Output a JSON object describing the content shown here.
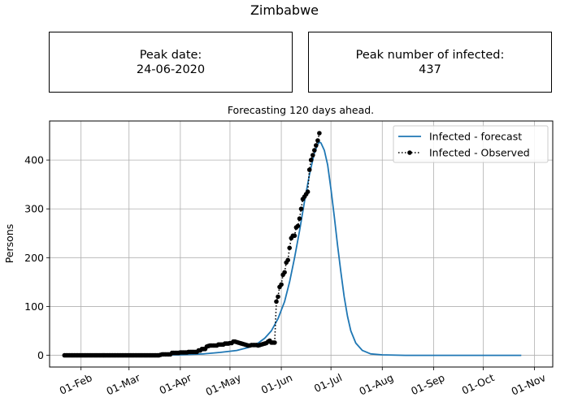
{
  "suptitle": "Zimbabwe",
  "boxes": {
    "peak_date_label": "Peak date:",
    "peak_date_value": "24-06-2020",
    "peak_num_label": "Peak number of infected:",
    "peak_num_value": "437"
  },
  "chart_data": {
    "type": "line",
    "title": "Forecasting 120 days ahead.",
    "xlabel": "",
    "ylabel": "Persons",
    "x_axis": "date",
    "xlim": [
      "2020-01-13",
      "2020-11-12"
    ],
    "ylim": [
      -24,
      480
    ],
    "grid": true,
    "legend_position": "upper right",
    "x_ticks": [
      "01-Feb",
      "01-Mar",
      "01-Apr",
      "01-May",
      "01-Jun",
      "01-Jul",
      "01-Aug",
      "01-Sep",
      "01-Oct",
      "01-Nov"
    ],
    "x_tick_dates": [
      "2020-02-01",
      "2020-03-01",
      "2020-04-01",
      "2020-05-01",
      "2020-06-01",
      "2020-07-01",
      "2020-08-01",
      "2020-09-01",
      "2020-10-01",
      "2020-11-01"
    ],
    "y_ticks": [
      0,
      100,
      200,
      300,
      400
    ],
    "series": [
      {
        "name": "Infected - forecast",
        "color": "#1f77b4",
        "style": "solid",
        "points": [
          [
            "2020-01-22",
            0
          ],
          [
            "2020-03-01",
            0
          ],
          [
            "2020-04-01",
            1
          ],
          [
            "2020-04-15",
            3
          ],
          [
            "2020-04-25",
            6
          ],
          [
            "2020-05-05",
            10
          ],
          [
            "2020-05-12",
            16
          ],
          [
            "2020-05-18",
            25
          ],
          [
            "2020-05-22",
            35
          ],
          [
            "2020-05-26",
            50
          ],
          [
            "2020-05-30",
            75
          ],
          [
            "2020-06-03",
            110
          ],
          [
            "2020-06-06",
            150
          ],
          [
            "2020-06-09",
            200
          ],
          [
            "2020-06-12",
            255
          ],
          [
            "2020-06-15",
            315
          ],
          [
            "2020-06-18",
            370
          ],
          [
            "2020-06-21",
            415
          ],
          [
            "2020-06-23",
            432
          ],
          [
            "2020-06-24",
            437
          ],
          [
            "2020-06-25",
            435
          ],
          [
            "2020-06-27",
            420
          ],
          [
            "2020-06-29",
            390
          ],
          [
            "2020-07-01",
            340
          ],
          [
            "2020-07-03",
            285
          ],
          [
            "2020-07-05",
            225
          ],
          [
            "2020-07-07",
            170
          ],
          [
            "2020-07-09",
            120
          ],
          [
            "2020-07-11",
            80
          ],
          [
            "2020-07-13",
            50
          ],
          [
            "2020-07-16",
            25
          ],
          [
            "2020-07-20",
            10
          ],
          [
            "2020-07-25",
            3
          ],
          [
            "2020-08-01",
            1
          ],
          [
            "2020-08-15",
            0
          ],
          [
            "2020-10-24",
            0
          ]
        ]
      },
      {
        "name": "Infected - Observed",
        "color": "#000000",
        "style": "dotted-markers",
        "points": [
          [
            "2020-01-22",
            0
          ],
          [
            "2020-01-23",
            0
          ],
          [
            "2020-01-24",
            0
          ],
          [
            "2020-01-25",
            0
          ],
          [
            "2020-01-26",
            0
          ],
          [
            "2020-01-27",
            0
          ],
          [
            "2020-01-28",
            0
          ],
          [
            "2020-01-29",
            0
          ],
          [
            "2020-01-30",
            0
          ],
          [
            "2020-01-31",
            0
          ],
          [
            "2020-02-01",
            0
          ],
          [
            "2020-02-02",
            0
          ],
          [
            "2020-02-03",
            0
          ],
          [
            "2020-02-04",
            0
          ],
          [
            "2020-02-05",
            0
          ],
          [
            "2020-02-06",
            0
          ],
          [
            "2020-02-07",
            0
          ],
          [
            "2020-02-08",
            0
          ],
          [
            "2020-02-09",
            0
          ],
          [
            "2020-02-10",
            0
          ],
          [
            "2020-02-11",
            0
          ],
          [
            "2020-02-12",
            0
          ],
          [
            "2020-02-13",
            0
          ],
          [
            "2020-02-14",
            0
          ],
          [
            "2020-02-15",
            0
          ],
          [
            "2020-02-16",
            0
          ],
          [
            "2020-02-17",
            0
          ],
          [
            "2020-02-18",
            0
          ],
          [
            "2020-02-19",
            0
          ],
          [
            "2020-02-20",
            0
          ],
          [
            "2020-02-21",
            0
          ],
          [
            "2020-02-22",
            0
          ],
          [
            "2020-02-23",
            0
          ],
          [
            "2020-02-24",
            0
          ],
          [
            "2020-02-25",
            0
          ],
          [
            "2020-02-26",
            0
          ],
          [
            "2020-02-27",
            0
          ],
          [
            "2020-02-28",
            0
          ],
          [
            "2020-02-29",
            0
          ],
          [
            "2020-03-01",
            0
          ],
          [
            "2020-03-02",
            0
          ],
          [
            "2020-03-03",
            0
          ],
          [
            "2020-03-04",
            0
          ],
          [
            "2020-03-05",
            0
          ],
          [
            "2020-03-06",
            0
          ],
          [
            "2020-03-07",
            0
          ],
          [
            "2020-03-08",
            0
          ],
          [
            "2020-03-09",
            0
          ],
          [
            "2020-03-10",
            0
          ],
          [
            "2020-03-11",
            0
          ],
          [
            "2020-03-12",
            0
          ],
          [
            "2020-03-13",
            0
          ],
          [
            "2020-03-14",
            0
          ],
          [
            "2020-03-15",
            0
          ],
          [
            "2020-03-16",
            0
          ],
          [
            "2020-03-17",
            0
          ],
          [
            "2020-03-18",
            0
          ],
          [
            "2020-03-19",
            0
          ],
          [
            "2020-03-20",
            1
          ],
          [
            "2020-03-21",
            2
          ],
          [
            "2020-03-22",
            2
          ],
          [
            "2020-03-23",
            2
          ],
          [
            "2020-03-24",
            2
          ],
          [
            "2020-03-25",
            2
          ],
          [
            "2020-03-26",
            2
          ],
          [
            "2020-03-27",
            5
          ],
          [
            "2020-03-28",
            5
          ],
          [
            "2020-03-29",
            5
          ],
          [
            "2020-03-30",
            5
          ],
          [
            "2020-03-31",
            5
          ],
          [
            "2020-04-01",
            6
          ],
          [
            "2020-04-02",
            6
          ],
          [
            "2020-04-03",
            6
          ],
          [
            "2020-04-04",
            6
          ],
          [
            "2020-04-05",
            6
          ],
          [
            "2020-04-06",
            7
          ],
          [
            "2020-04-07",
            7
          ],
          [
            "2020-04-08",
            7
          ],
          [
            "2020-04-09",
            7
          ],
          [
            "2020-04-10",
            7
          ],
          [
            "2020-04-11",
            7
          ],
          [
            "2020-04-12",
            10
          ],
          [
            "2020-04-13",
            10
          ],
          [
            "2020-04-14",
            13
          ],
          [
            "2020-04-15",
            13
          ],
          [
            "2020-04-16",
            13
          ],
          [
            "2020-04-17",
            18
          ],
          [
            "2020-04-18",
            19
          ],
          [
            "2020-04-19",
            20
          ],
          [
            "2020-04-20",
            20
          ],
          [
            "2020-04-21",
            20
          ],
          [
            "2020-04-22",
            20
          ],
          [
            "2020-04-23",
            20
          ],
          [
            "2020-04-24",
            22
          ],
          [
            "2020-04-25",
            22
          ],
          [
            "2020-04-26",
            22
          ],
          [
            "2020-04-27",
            22
          ],
          [
            "2020-04-28",
            24
          ],
          [
            "2020-04-29",
            24
          ],
          [
            "2020-04-30",
            24
          ],
          [
            "2020-05-01",
            25
          ],
          [
            "2020-05-02",
            25
          ],
          [
            "2020-05-03",
            28
          ],
          [
            "2020-05-04",
            28
          ],
          [
            "2020-05-05",
            27
          ],
          [
            "2020-05-06",
            26
          ],
          [
            "2020-05-07",
            25
          ],
          [
            "2020-05-08",
            24
          ],
          [
            "2020-05-09",
            23
          ],
          [
            "2020-05-10",
            22
          ],
          [
            "2020-05-11",
            21
          ],
          [
            "2020-05-12",
            20
          ],
          [
            "2020-05-13",
            20
          ],
          [
            "2020-05-14",
            21
          ],
          [
            "2020-05-15",
            21
          ],
          [
            "2020-05-16",
            21
          ],
          [
            "2020-05-17",
            21
          ],
          [
            "2020-05-18",
            20
          ],
          [
            "2020-05-19",
            21
          ],
          [
            "2020-05-20",
            22
          ],
          [
            "2020-05-21",
            23
          ],
          [
            "2020-05-22",
            24
          ],
          [
            "2020-05-23",
            25
          ],
          [
            "2020-05-24",
            28
          ],
          [
            "2020-05-25",
            30
          ],
          [
            "2020-05-26",
            26
          ],
          [
            "2020-05-27",
            26
          ],
          [
            "2020-05-28",
            26
          ],
          [
            "2020-05-29",
            110
          ],
          [
            "2020-05-30",
            120
          ],
          [
            "2020-05-31",
            140
          ],
          [
            "2020-06-01",
            145
          ],
          [
            "2020-06-02",
            165
          ],
          [
            "2020-06-03",
            170
          ],
          [
            "2020-06-04",
            190
          ],
          [
            "2020-06-05",
            195
          ],
          [
            "2020-06-06",
            220
          ],
          [
            "2020-06-07",
            240
          ],
          [
            "2020-06-08",
            245
          ],
          [
            "2020-06-09",
            245
          ],
          [
            "2020-06-10",
            262
          ],
          [
            "2020-06-11",
            265
          ],
          [
            "2020-06-12",
            280
          ],
          [
            "2020-06-13",
            300
          ],
          [
            "2020-06-14",
            320
          ],
          [
            "2020-06-15",
            325
          ],
          [
            "2020-06-16",
            330
          ],
          [
            "2020-06-17",
            335
          ],
          [
            "2020-06-18",
            380
          ],
          [
            "2020-06-19",
            400
          ],
          [
            "2020-06-20",
            410
          ],
          [
            "2020-06-21",
            420
          ],
          [
            "2020-06-22",
            430
          ],
          [
            "2020-06-23",
            440
          ],
          [
            "2020-06-24",
            455
          ]
        ]
      }
    ]
  }
}
